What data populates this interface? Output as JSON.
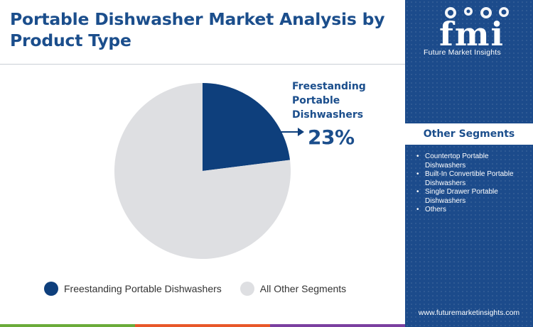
{
  "title": "Portable Dishwasher Market Analysis by Product Type",
  "colors": {
    "accent": "#1b4e8c",
    "highlight_slice": "#0e3f7c",
    "other_slice": "#dedfe2",
    "sidebar": "#1c4b8b",
    "bar": [
      "#6aab3a",
      "#e8582a",
      "#7b3fa0"
    ]
  },
  "chart_data": {
    "type": "pie",
    "slices": [
      {
        "label": "Freestanding Portable Dishwashers",
        "value": 23,
        "color": "#0e3f7c"
      },
      {
        "label": "All Other Segments",
        "value": 77,
        "color": "#dedfe2"
      }
    ],
    "callout": {
      "label": "Freestanding Portable Dishwashers",
      "value": "23%"
    },
    "legend_position": "bottom"
  },
  "sidebar": {
    "logo_text": "fmi",
    "logo_subtitle": "Future Market Insights",
    "segments_title": "Other Segments",
    "segments": [
      "Countertop Portable Dishwashers",
      "Built-In Convertible Portable Dishwashers",
      "Single Drawer Portable Dishwashers",
      "Others"
    ],
    "website": "www.futuremarketinsights.com"
  }
}
